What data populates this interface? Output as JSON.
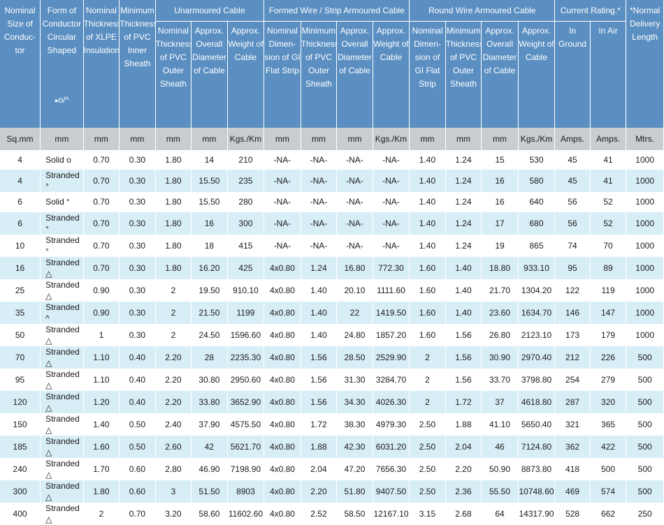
{
  "headers": {
    "nominal_size": "Nominal Size of Conduc- tor",
    "form": "Form of Conductor Circular Shaped",
    "form_marks": "o/^",
    "xlpe": "Nominal Thickness of XLPE Insulation",
    "inner_sheath": "Minimum Thickness of PVC Inner Sheath",
    "unarmoured": "Unarmoured Cable",
    "formed_wire": "Formed Wire / Strip Armoured Cable",
    "round_wire": "Round Wire Armoured Cable",
    "current_rating": "Current Rating.*",
    "delivery": "*Normal Delivery Length",
    "un_outer": "Nominal Thickness of PVC Outer Sheath",
    "un_diameter": "Approx. Overall Diameter of Cable",
    "un_weight": "Approx. Weight of Cable",
    "fw_dimension": "Nominal Dimen- sion of GI Flat Strip",
    "fw_outer": "Minimum Thickness of PVC Outer Sheath",
    "fw_diameter": "Approx. Overall Diameter of Cable",
    "fw_weight": "Approx. Weight of Cable",
    "rw_dimension": "Nominal Dimen- sion of GI Flat Strip",
    "rw_outer": "Minimum Thickness of PVC Outer Sheath",
    "rw_diameter": "Approx. Overall Diameter of Cable",
    "rw_weight": "Approx. Weight of Cable",
    "in_ground": "In Ground",
    "in_air": "In Air"
  },
  "units": [
    "Sq.mm",
    "mm",
    "mm",
    "mm",
    "mm",
    "mm",
    "Kgs./Km",
    "mm",
    "mm",
    "mm",
    "Kgs./Km",
    "mm",
    "mm",
    "mm",
    "Kgs./Km",
    "Amps.",
    "Amps.",
    "Mtrs."
  ],
  "rows": [
    [
      "4",
      "Solid o",
      "0.70",
      "0.30",
      "1.80",
      "14",
      "210",
      "-NA-",
      "-NA-",
      "-NA-",
      "-NA-",
      "1.40",
      "1.24",
      "15",
      "530",
      "45",
      "41",
      "1000"
    ],
    [
      "4",
      "Stranded °",
      "0.70",
      "0.30",
      "1.80",
      "15.50",
      "235",
      "-NA-",
      "-NA-",
      "-NA-",
      "-NA-",
      "1.40",
      "1.24",
      "16",
      "580",
      "45",
      "41",
      "1000"
    ],
    [
      "6",
      "Solid °",
      "0.70",
      "0.30",
      "1.80",
      "15.50",
      "280",
      "-NA-",
      "-NA-",
      "-NA-",
      "-NA-",
      "1.40",
      "1.24",
      "16",
      "640",
      "56",
      "52",
      "1000"
    ],
    [
      "6",
      "Stranded °",
      "0.70",
      "0.30",
      "1.80",
      "16",
      "300",
      "-NA-",
      "-NA-",
      "-NA-",
      "-NA-",
      "1.40",
      "1.24",
      "17",
      "680",
      "56",
      "52",
      "1000"
    ],
    [
      "10",
      "Stranded °",
      "0.70",
      "0.30",
      "1.80",
      "18",
      "415",
      "-NA-",
      "-NA-",
      "-NA-",
      "-NA-",
      "1.40",
      "1.24",
      "19",
      "865",
      "74",
      "70",
      "1000"
    ],
    [
      "16",
      "Stranded △",
      "0.70",
      "0.30",
      "1.80",
      "16.20",
      "425",
      "4x0.80",
      "1.24",
      "16.80",
      "772.30",
      "1.60",
      "1.40",
      "18.80",
      "933.10",
      "95",
      "89",
      "1000"
    ],
    [
      "25",
      "Stranded △",
      "0.90",
      "0.30",
      "2",
      "19.50",
      "910.10",
      "4x0.80",
      "1.40",
      "20.10",
      "1111.60",
      "1.60",
      "1.40",
      "21.70",
      "1304.20",
      "122",
      "119",
      "1000"
    ],
    [
      "35",
      "Stranded ^",
      "0.90",
      "0.30",
      "2",
      "21.50",
      "1199",
      "4x0.80",
      "1.40",
      "22",
      "1419.50",
      "1.60",
      "1.40",
      "23.60",
      "1634.70",
      "146",
      "147",
      "1000"
    ],
    [
      "50",
      "Stranded △",
      "1",
      "0.30",
      "2",
      "24.50",
      "1596.60",
      "4x0.80",
      "1.40",
      "24.80",
      "1857.20",
      "1.60",
      "1.56",
      "26.80",
      "2123.10",
      "173",
      "179",
      "1000"
    ],
    [
      "70",
      "Stranded △",
      "1.10",
      "0.40",
      "2.20",
      "28",
      "2235.30",
      "4x0.80",
      "1.56",
      "28.50",
      "2529.90",
      "2",
      "1.56",
      "30.90",
      "2970.40",
      "212",
      "226",
      "500"
    ],
    [
      "95",
      "Stranded △",
      "1.10",
      "0.40",
      "2.20",
      "30.80",
      "2950.60",
      "4x0.80",
      "1.56",
      "31.30",
      "3284.70",
      "2",
      "1.56",
      "33.70",
      "3798.80",
      "254",
      "279",
      "500"
    ],
    [
      "120",
      "Stranded △",
      "1.20",
      "0.40",
      "2.20",
      "33.80",
      "3652.90",
      "4x0.80",
      "1.56",
      "34.30",
      "4026.30",
      "2",
      "1.72",
      "37",
      "4618.80",
      "287",
      "320",
      "500"
    ],
    [
      "150",
      "Stranded △",
      "1.40",
      "0.50",
      "2.40",
      "37.90",
      "4575.50",
      "4x0.80",
      "1.72",
      "38.30",
      "4979.30",
      "2.50",
      "1.88",
      "41.10",
      "5650.40",
      "321",
      "365",
      "500"
    ],
    [
      "185",
      "Stranded △",
      "1.60",
      "0.50",
      "2.60",
      "42",
      "5621.70",
      "4x0.80",
      "1.88",
      "42.30",
      "6031.20",
      "2.50",
      "2.04",
      "46",
      "7124.80",
      "362",
      "422",
      "500"
    ],
    [
      "240",
      "Stranded △",
      "1.70",
      "0.60",
      "2.80",
      "46.90",
      "7198.90",
      "4x0.80",
      "2.04",
      "47.20",
      "7656.30",
      "2.50",
      "2.20",
      "50.90",
      "8873.80",
      "418",
      "500",
      "500"
    ],
    [
      "300",
      "Stranded △",
      "1.80",
      "0.60",
      "3",
      "51.50",
      "8903",
      "4x0.80",
      "2.20",
      "51.80",
      "9407.50",
      "2.50",
      "2.36",
      "55.50",
      "10748.60",
      "469",
      "574",
      "500"
    ],
    [
      "400",
      "Stranded △",
      "2",
      "0.70",
      "3.20",
      "58.60",
      "11602.60",
      "4x0.80",
      "2.52",
      "58.50",
      "12167.10",
      "3.15",
      "2.68",
      "64",
      "14317.90",
      "528",
      "662",
      "250"
    ]
  ]
}
